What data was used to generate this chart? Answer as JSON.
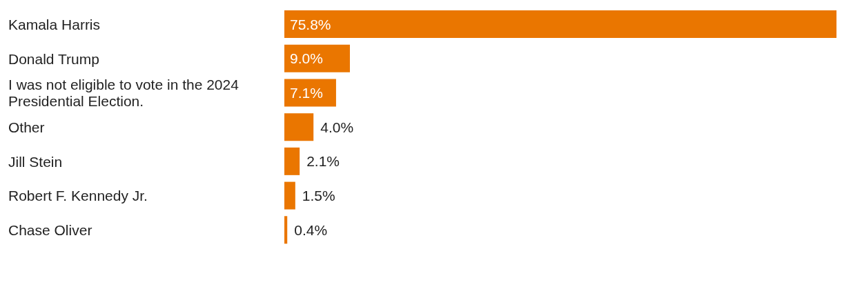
{
  "chart_data": {
    "type": "bar",
    "orientation": "horizontal",
    "categories": [
      "Kamala Harris",
      "Donald Trump",
      "I was not eligible to vote in the 2024 Presidential Election.",
      "Other",
      "Jill Stein",
      "Robert F. Kennedy Jr.",
      "Chase Oliver"
    ],
    "values": [
      75.8,
      9.0,
      7.1,
      4.0,
      2.1,
      1.5,
      0.4
    ],
    "value_labels": [
      "75.8%",
      "9.0%",
      "7.1%",
      "4.0%",
      "2.1%",
      "1.5%",
      "0.4%"
    ],
    "color": "#ea7600"
  }
}
